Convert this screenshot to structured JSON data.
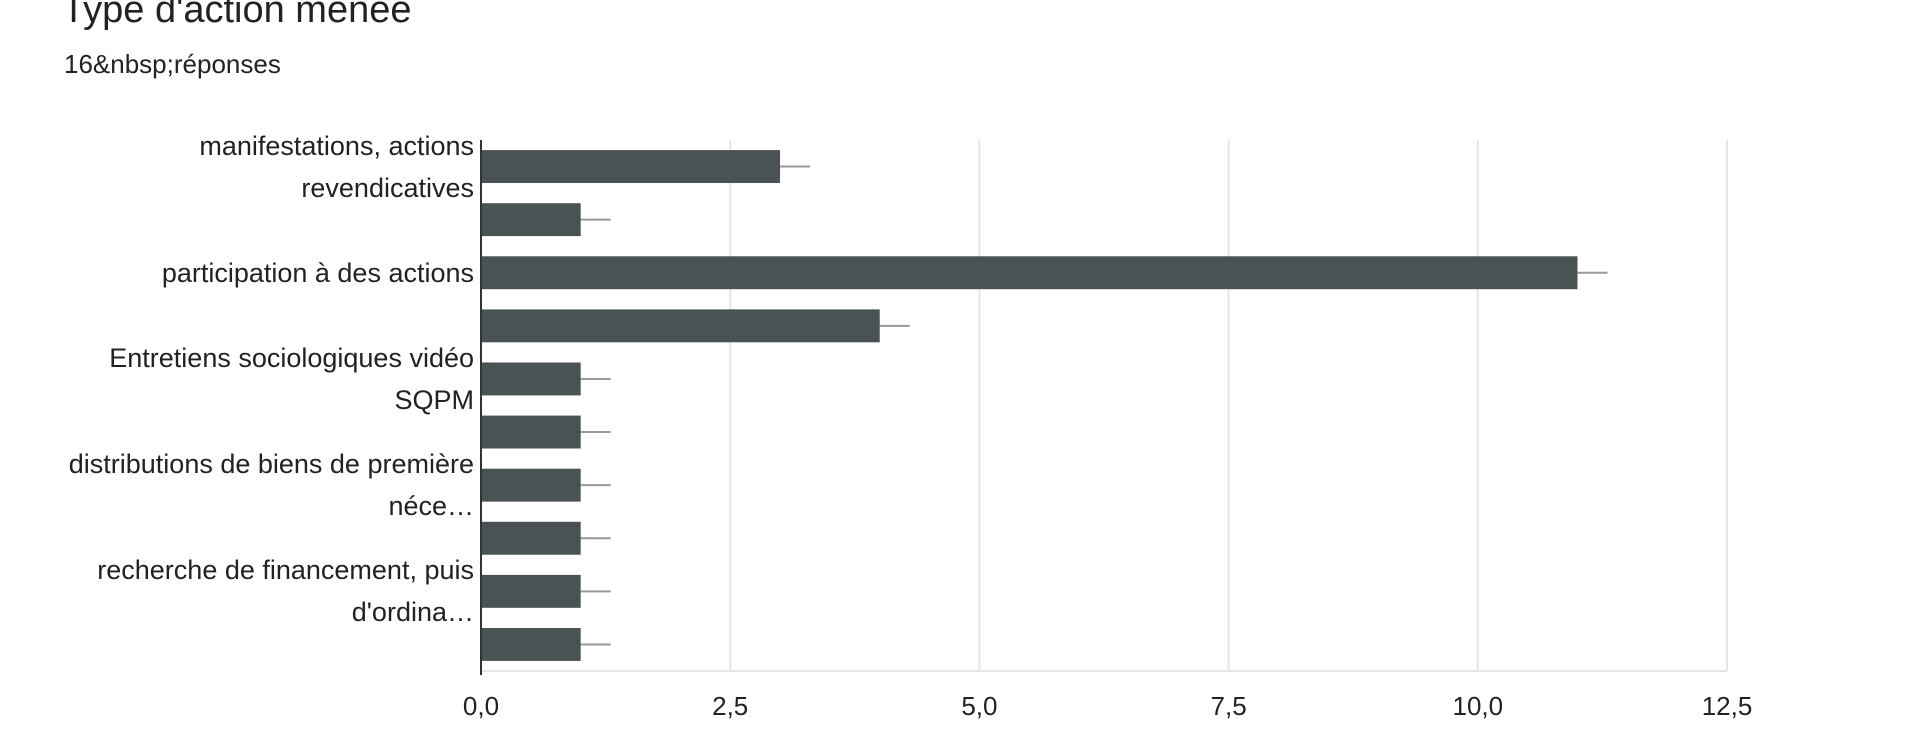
{
  "chart_data": {
    "type": "hbar",
    "title": "Type d'action menée",
    "subtitle": "16&nbsp;réponses",
    "categories": [
      "manifestations, actions revendicatives",
      null,
      "participation à des actions",
      null,
      "Entretiens sociologiques vidéo SQPM",
      null,
      "distributions de biens de première néce…",
      null,
      "recherche de financement, puis d'ordina…",
      null
    ],
    "values": [
      3,
      1,
      11,
      4,
      1,
      1,
      1,
      1,
      1,
      1
    ],
    "color": "#4a5354",
    "xlim": [
      0,
      12.5
    ],
    "xticks": [
      {
        "value": 0,
        "label": "0,0"
      },
      {
        "value": 2.5,
        "label": "2,5"
      },
      {
        "value": 5,
        "label": "5,0"
      },
      {
        "value": 7.5,
        "label": "7,5"
      },
      {
        "value": 10,
        "label": "10,0"
      },
      {
        "value": 12.5,
        "label": "12,5"
      }
    ],
    "grid": true
  }
}
